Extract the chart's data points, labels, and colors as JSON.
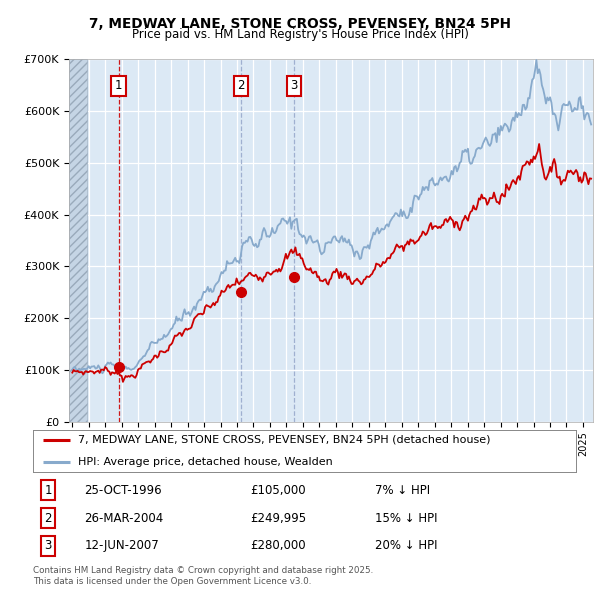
{
  "title": "7, MEDWAY LANE, STONE CROSS, PEVENSEY, BN24 5PH",
  "subtitle": "Price paid vs. HM Land Registry's House Price Index (HPI)",
  "ylim": [
    0,
    700000
  ],
  "yticks": [
    0,
    100000,
    200000,
    300000,
    400000,
    500000,
    600000,
    700000
  ],
  "ytick_labels": [
    "£0",
    "£100K",
    "£200K",
    "£300K",
    "£400K",
    "£500K",
    "£600K",
    "£700K"
  ],
  "xlim_start": 1993.8,
  "xlim_end": 2025.6,
  "hatch_end": 1994.92,
  "red_line_color": "#cc0000",
  "blue_line_color": "#88aacc",
  "vline_color_1": "#cc0000",
  "vline_color_23": "#99aacc",
  "box_color": "#cc0000",
  "sales": [
    {
      "year": 1996.82,
      "price": 105000,
      "label": "1",
      "date": "25-OCT-1996",
      "price_str": "£105,000",
      "hpi_pct": "7% ↓ HPI"
    },
    {
      "year": 2004.23,
      "price": 249995,
      "label": "2",
      "date": "26-MAR-2004",
      "price_str": "£249,995",
      "hpi_pct": "15% ↓ HPI"
    },
    {
      "year": 2007.45,
      "price": 280000,
      "label": "3",
      "date": "12-JUN-2007",
      "price_str": "£280,000",
      "hpi_pct": "20% ↓ HPI"
    }
  ],
  "legend_red": "7, MEDWAY LANE, STONE CROSS, PEVENSEY, BN24 5PH (detached house)",
  "legend_blue": "HPI: Average price, detached house, Wealden",
  "footer_line1": "Contains HM Land Registry data © Crown copyright and database right 2025.",
  "footer_line2": "This data is licensed under the Open Government Licence v3.0.",
  "bg_color": "#dce9f5",
  "fig_bg": "#ffffff"
}
